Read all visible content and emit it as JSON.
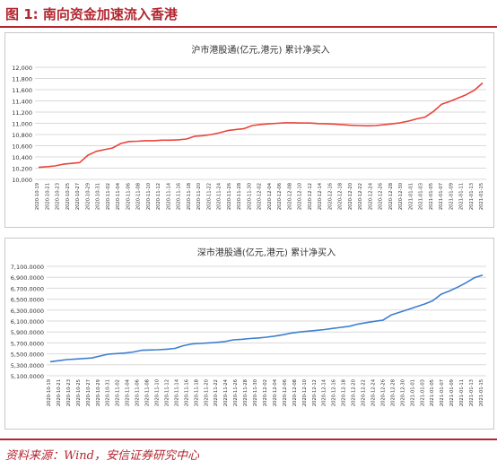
{
  "figure_title": "图 1:  南向资金加速流入香港",
  "source": "资料来源：Wind，安信证券研究中心",
  "colors": {
    "accent": "#b3262f",
    "chart1_line": "#e8443a",
    "chart2_line": "#3d7fd0",
    "grid": "#d9d9d9",
    "axis_text": "#333333"
  },
  "chart_data": [
    {
      "type": "line",
      "title": "沪市港股通(亿元,港元) 累计净买入",
      "xlabel": "",
      "ylabel": "",
      "ylim": [
        10000,
        12000
      ],
      "yticks": [
        "10,000",
        "10,200",
        "10,400",
        "10,600",
        "10,800",
        "11,000",
        "11,200",
        "11,400",
        "11,600",
        "11,800",
        "12,000"
      ],
      "ytick_values": [
        10000,
        10200,
        10400,
        10600,
        10800,
        11000,
        11200,
        11400,
        11600,
        11800,
        12000
      ],
      "xtick_labels": [
        "2020-10-19",
        "2020-10-21",
        "2020-10-23",
        "2020-10-25",
        "2020-10-27",
        "2020-10-29",
        "2020-10-31",
        "2020-11-02",
        "2020-11-04",
        "2020-11-06",
        "2020-11-08",
        "2020-11-10",
        "2020-11-12",
        "2020-11-14",
        "2020-11-16",
        "2020-11-18",
        "2020-11-20",
        "2020-11-22",
        "2020-11-24",
        "2020-11-26",
        "2020-11-28",
        "2020-11-30",
        "2020-12-02",
        "2020-12-04",
        "2020-12-06",
        "2020-12-08",
        "2020-12-10",
        "2020-12-12",
        "2020-12-14",
        "2020-12-16",
        "2020-12-18",
        "2020-12-20",
        "2020-12-22",
        "2020-12-24",
        "2020-12-26",
        "2020-12-28",
        "2020-12-30",
        "2021-01-01",
        "2021-01-03",
        "2021-01-05",
        "2021-01-07",
        "2021-01-09",
        "2021-01-11",
        "2021-01-13",
        "2021-01-15"
      ],
      "grid": true,
      "legend": "none",
      "series": [
        {
          "values": [
            10215,
            10225,
            10240,
            10270,
            10285,
            10300,
            10430,
            10500,
            10530,
            10560,
            10640,
            10675,
            10680,
            10690,
            10690,
            10700,
            10700,
            10705,
            10720,
            10770,
            10780,
            10800,
            10830,
            10870,
            10890,
            10905,
            10960,
            10980,
            10990,
            11000,
            11010,
            11010,
            11005,
            11005,
            10995,
            10990,
            10985,
            10975,
            10965,
            10960,
            10955,
            10960,
            10975,
            10990,
            11010,
            11040,
            11080,
            11110,
            11210,
            11340,
            11390,
            11450,
            11510,
            11590,
            11720
          ]
        }
      ]
    },
    {
      "type": "line",
      "title": "深市港股通(亿元,港元) 累计净买入",
      "xlabel": "",
      "ylabel": "",
      "ylim": [
        5100,
        7100
      ],
      "yticks": [
        "5,100.0000",
        "5,300.0000",
        "5,500.0000",
        "5,700.0000",
        "5,900.0000",
        "6,100.0000",
        "6,300.0000",
        "6,500.0000",
        "6,700.0000",
        "6,900.0000",
        "7,100.0000"
      ],
      "ytick_values": [
        5100,
        5300,
        5500,
        5700,
        5900,
        6100,
        6300,
        6500,
        6700,
        6900,
        7100
      ],
      "xtick_labels": [
        "2020-10-19",
        "2020-10-21",
        "2020-10-23",
        "2020-10-25",
        "2020-10-27",
        "2020-10-29",
        "2020-10-31",
        "2020-11-02",
        "2020-11-04",
        "2020-11-06",
        "2020-11-08",
        "2020-11-10",
        "2020-11-12",
        "2020-11-14",
        "2020-11-16",
        "2020-11-18",
        "2020-11-20",
        "2020-11-22",
        "2020-11-24",
        "2020-11-26",
        "2020-11-28",
        "2020-11-30",
        "2020-12-02",
        "2020-12-04",
        "2020-12-06",
        "2020-12-08",
        "2020-12-10",
        "2020-12-12",
        "2020-12-14",
        "2020-12-16",
        "2020-12-18",
        "2020-12-20",
        "2020-12-22",
        "2020-12-24",
        "2020-12-26",
        "2020-12-28",
        "2020-12-30",
        "2021-01-01",
        "2021-01-03",
        "2021-01-05",
        "2021-01-07",
        "2021-01-09",
        "2021-01-11",
        "2021-01-13",
        "2021-01-15"
      ],
      "grid": true,
      "legend": "none",
      "series": [
        {
          "values": [
            5355,
            5375,
            5395,
            5405,
            5415,
            5425,
            5460,
            5495,
            5505,
            5515,
            5535,
            5565,
            5570,
            5575,
            5585,
            5600,
            5650,
            5680,
            5690,
            5700,
            5710,
            5725,
            5755,
            5765,
            5780,
            5790,
            5805,
            5825,
            5850,
            5880,
            5900,
            5915,
            5930,
            5945,
            5965,
            5985,
            6005,
            6045,
            6070,
            6095,
            6115,
            6210,
            6260,
            6310,
            6360,
            6410,
            6470,
            6590,
            6650,
            6720,
            6800,
            6890,
            6940
          ]
        }
      ]
    }
  ]
}
